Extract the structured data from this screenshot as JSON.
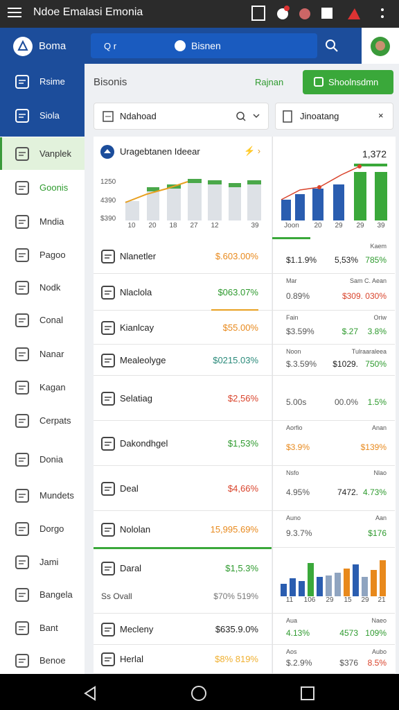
{
  "status_bar": {
    "title": "Ndoe Emalasi Emonia"
  },
  "header": {
    "brand": "Boma",
    "search_placeholder": "Q r",
    "search_value": "Bisnen"
  },
  "sidebar": {
    "items": [
      "Rsime",
      "Siola",
      "Vanplek",
      "Goonis",
      "Mndia",
      "Pagoo",
      "Nodk",
      "Conal",
      "Nanar",
      "Kagan",
      "Cerpats",
      "Donia",
      "Mundets",
      "Dorgo",
      "Jami",
      "Bangela",
      "Bant",
      "Benoe"
    ]
  },
  "main": {
    "title": "Bisonis",
    "link": "Rajnan",
    "button": "Shoolnsdmn",
    "filters": [
      "Ndahoad",
      "Jinoatang"
    ],
    "chart_card": {
      "title": "Uragebtanen Ideear",
      "y_labels": [
        "1250",
        "4390",
        "$390"
      ],
      "x_labels": [
        "10",
        "20",
        "18",
        "27",
        "12",
        "39"
      ],
      "right_value": "1,372",
      "right_x_labels": [
        "Joon",
        "20",
        "29",
        "29",
        "39"
      ]
    },
    "rows": [
      {
        "name": "Nlanetler",
        "value": "$.603.00%",
        "color": "#e8891c"
      },
      {
        "name": "Nlaclola",
        "value": "$063.07%",
        "color": "#2e9a2e"
      },
      {
        "name": "Kianlcay",
        "value": "$55.00%",
        "color": "#e8891c"
      },
      {
        "name": "Mealeolyge",
        "value": "$0215.03%",
        "color": "#2a8a7a"
      },
      {
        "name": "Selatiag",
        "value": "$2,56%",
        "color": "#d9432b"
      },
      {
        "name": "Dakondhgel",
        "value": "$1,53%",
        "color": "#2e9a2e"
      },
      {
        "name": "Deal",
        "value": "$4,66%",
        "color": "#d9432b"
      },
      {
        "name": "Nololan",
        "value": "15,995.69%",
        "color": "#e8891c"
      },
      {
        "name": "Daral",
        "value": "$1,5.3%",
        "color": "#2e9a2e",
        "sub_name": "Ss Ovall",
        "sub_value": "$70% 519%"
      },
      {
        "name": "Mecleny",
        "value": "$635.9.0%",
        "color": "#222222"
      },
      {
        "name": "Herlal",
        "value": "$8% 819%",
        "color": "#f0b030"
      }
    ],
    "side_rows": [
      {
        "top": [
          "",
          "Kaem"
        ],
        "values": [
          {
            "text": "$1.1.9%",
            "color": "#222222"
          },
          {
            "text": "5,53%",
            "color": "#222222"
          },
          {
            "text": "785%",
            "color": "#2e9a2e"
          }
        ]
      },
      {
        "top": [
          "Mar",
          "Sam C. Aean"
        ],
        "values": [
          {
            "text": "0.89%",
            "color": "#555555"
          },
          {
            "text": "$309. 030%",
            "color": "#d9432b"
          }
        ]
      },
      {
        "top": [
          "Fain",
          "Oriw"
        ],
        "values": [
          {
            "text": "$3.59%",
            "color": "#555555"
          },
          {
            "text": "$.27",
            "color": "#2e9a2e"
          },
          {
            "text": "3.8%",
            "color": "#2e9a2e"
          }
        ]
      },
      {
        "top": [
          "Noon",
          "Tulraaraleea"
        ],
        "values": [
          {
            "text": "$.3.59%",
            "color": "#555555"
          },
          {
            "text": "$1029.",
            "color": "#222222"
          },
          {
            "text": "750%",
            "color": "#2e9a2e"
          }
        ]
      },
      {
        "top": [
          "",
          ""
        ],
        "values": [
          {
            "text": "5.00s",
            "color": "#555555"
          },
          {
            "text": "00.0%",
            "color": "#555555"
          },
          {
            "text": "1.5%",
            "color": "#2e9a2e"
          }
        ]
      },
      {
        "top": [
          "Aorfio",
          "Anan"
        ],
        "values": [
          {
            "text": "$3.9%",
            "color": "#e8891c"
          },
          {
            "text": "$139%",
            "color": "#e8891c"
          }
        ]
      },
      {
        "top": [
          "Nsfo",
          "Nlao"
        ],
        "values": [
          {
            "text": "4.95%",
            "color": "#555555"
          },
          {
            "text": "7472.",
            "color": "#222222"
          },
          {
            "text": "4.73%",
            "color": "#2e9a2e"
          }
        ]
      },
      {
        "top": [
          "Auno",
          "Aan"
        ],
        "values": [
          {
            "text": "9.3.7%",
            "color": "#555555"
          },
          {
            "text": "$176",
            "color": "#2e9a2e"
          }
        ]
      },
      {
        "chart_x_labels": [
          "11",
          "106",
          "29",
          "15",
          "29",
          "21"
        ]
      },
      {
        "top": [
          "Aua",
          "Naeo"
        ],
        "values": [
          {
            "text": "4.13%",
            "color": "#2e9a2e"
          },
          {
            "text": "4573",
            "color": "#2e9a2e"
          },
          {
            "text": "109%",
            "color": "#2e9a2e"
          }
        ]
      },
      {
        "top": [
          "Aos",
          "Aubo"
        ],
        "values": [
          {
            "text": "$.2.9%",
            "color": "#555555"
          },
          {
            "text": "$376",
            "color": "#555555"
          },
          {
            "text": "8.5%",
            "color": "#d9432b"
          }
        ]
      }
    ]
  }
}
